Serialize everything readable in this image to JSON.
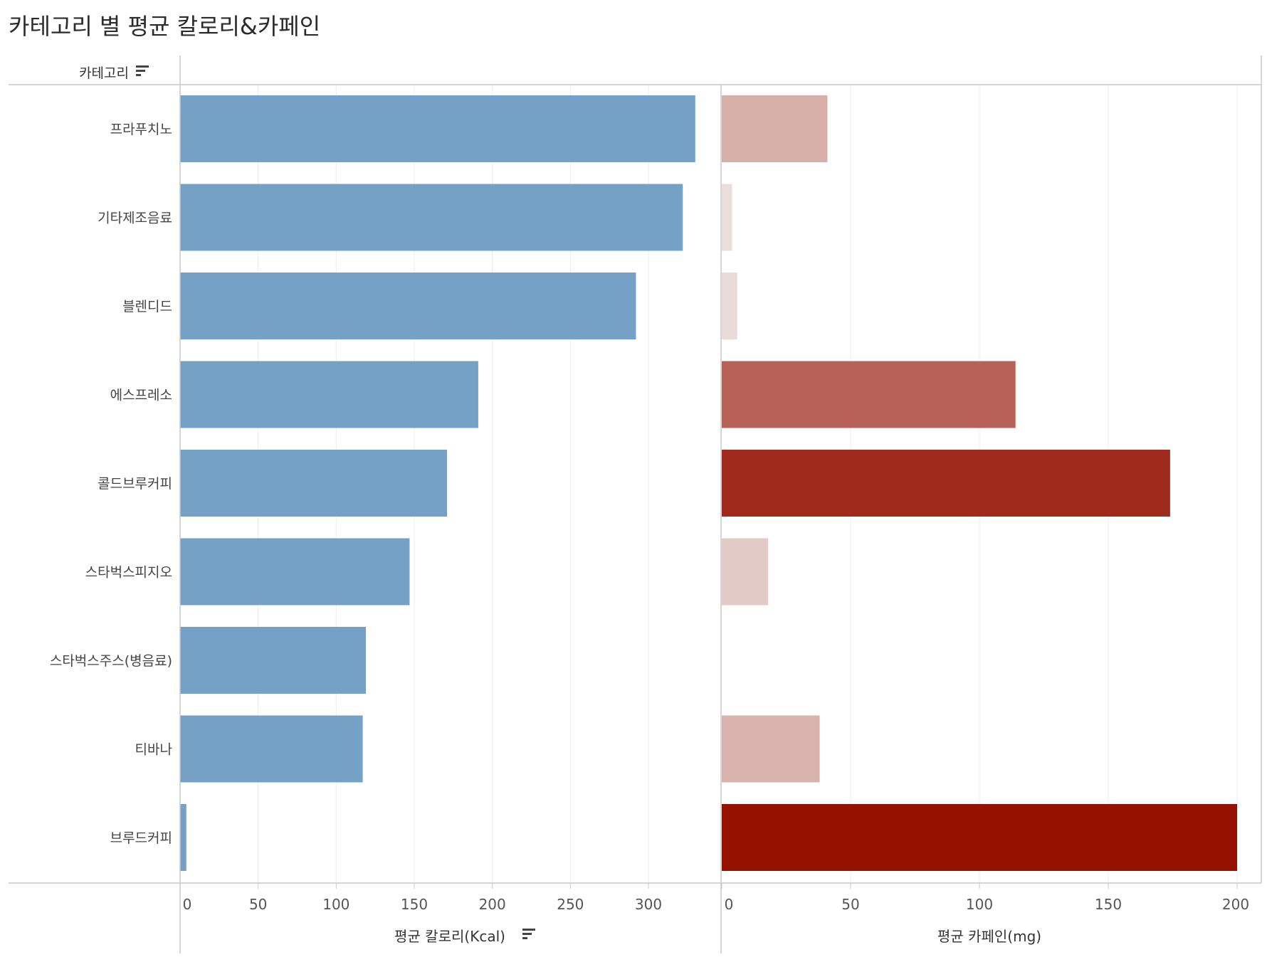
{
  "title": "카테고리 별 평균 칼로리&카페인",
  "chart_data": {
    "type": "bar",
    "orientation": "horizontal",
    "category_header": "카테고리",
    "categories": [
      "프라푸치노",
      "기타제조음료",
      "블렌디드",
      "에스프레소",
      "콜드브루커피",
      "스타벅스피지오",
      "스타벅스주스(병음료)",
      "티바나",
      "브루드커피"
    ],
    "series": [
      {
        "name": "평균 칼로리(Kcal)",
        "values": [
          330,
          322,
          292,
          191,
          171,
          147,
          119,
          117,
          4
        ],
        "xlim": [
          0,
          340
        ],
        "ticks": [
          0,
          50,
          100,
          150,
          200,
          250,
          300
        ],
        "color": "#75a1c7"
      },
      {
        "name": "평균 카페인(mg)",
        "values": [
          41,
          4,
          6,
          114,
          174,
          18,
          0,
          38,
          200
        ],
        "xlim": [
          0,
          205
        ],
        "ticks": [
          0,
          50,
          100,
          150,
          200
        ],
        "color_low": "#ede6e5",
        "color_high": "#951100"
      }
    ],
    "grid": true,
    "legend": "none"
  }
}
